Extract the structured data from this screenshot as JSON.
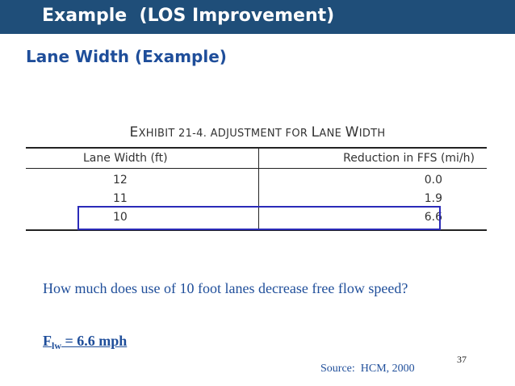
{
  "slide": {
    "title": "Example  (LOS Improvement)",
    "subtitle": "Lane Width (Example)",
    "page_number": "37"
  },
  "exhibit": {
    "title_prefix": "E",
    "title_part1": "XHIBIT 21-4.  A",
    "title_part2": "DJUSTMENT FOR ",
    "title_part3": "L",
    "title_part4": "ANE ",
    "title_part5": "W",
    "title_part6": "IDTH",
    "columns": [
      "Lane Width (ft)",
      "Reduction in FFS (mi/h)"
    ],
    "rows": [
      {
        "lane_width": "12",
        "reduction": "0.0"
      },
      {
        "lane_width": "11",
        "reduction": "1.9"
      },
      {
        "lane_width": "10",
        "reduction": "6.6"
      }
    ],
    "highlight_color": "#2a2ab8"
  },
  "question": {
    "text": "How much does use of 10 foot lanes decrease free flow speed?",
    "answer_main": "F",
    "answer_sub": "lw",
    "answer_rest": " = 6.6 mph"
  },
  "source": "Source:  HCM, 2000",
  "colors": {
    "header_bg": "#1f4e79",
    "accent_text": "#1f4e9a"
  }
}
